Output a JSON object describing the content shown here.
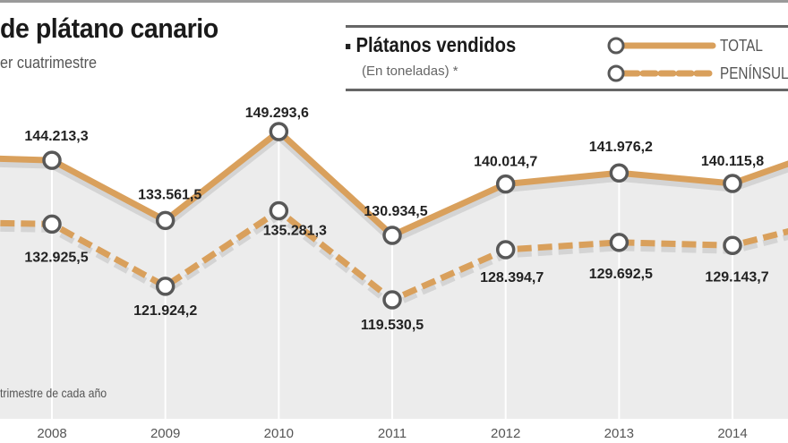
{
  "chart_data": {
    "type": "line",
    "title": "de plátano canario",
    "subtitle": "er cuatrimestre",
    "legend_title": "Plátanos vendidos",
    "legend_subtitle": "(En toneladas) *",
    "footnote": "trimestre de cada año",
    "legend_placement": "top-right",
    "categories": [
      "2008",
      "2009",
      "2010",
      "2011",
      "2012",
      "2013",
      "2014"
    ],
    "x": [
      2008,
      2009,
      2010,
      2011,
      2012,
      2013,
      2014
    ],
    "series": [
      {
        "name": "TOTAL",
        "style": "solid",
        "values": [
          144213.3,
          133561.5,
          149293.6,
          130934.5,
          140014.7,
          141976.2,
          140115.8
        ],
        "labels": [
          "144.213,3",
          "133.561,5",
          "149.293,6",
          "130.934,5",
          "140.014,7",
          "141.976,2",
          "140.115,8"
        ],
        "offscreen_estimates": {
          "2007": 144800,
          "2015": 147200
        }
      },
      {
        "name": "PENÍNSULA",
        "style": "dashed",
        "values": [
          132925.5,
          121924.2,
          135281.3,
          119530.5,
          128394.7,
          129692.5,
          129143.7
        ],
        "labels": [
          "132.925,5",
          "121.924,2",
          "135.281,3",
          "119.530,5",
          "128.394,7",
          "129.692,5",
          "129.143,7"
        ],
        "offscreen_estimates": {
          "2007": 133300,
          "2015": 134200
        }
      }
    ],
    "xlim": [
      2007.54,
      2014.49
    ],
    "ylim": [
      97000,
      154000
    ],
    "grid": "vertical",
    "colors": {
      "line": "#d9a05c",
      "marker_stroke": "#585858",
      "area": "#ececec",
      "shadow": "#d4d4d4"
    }
  }
}
